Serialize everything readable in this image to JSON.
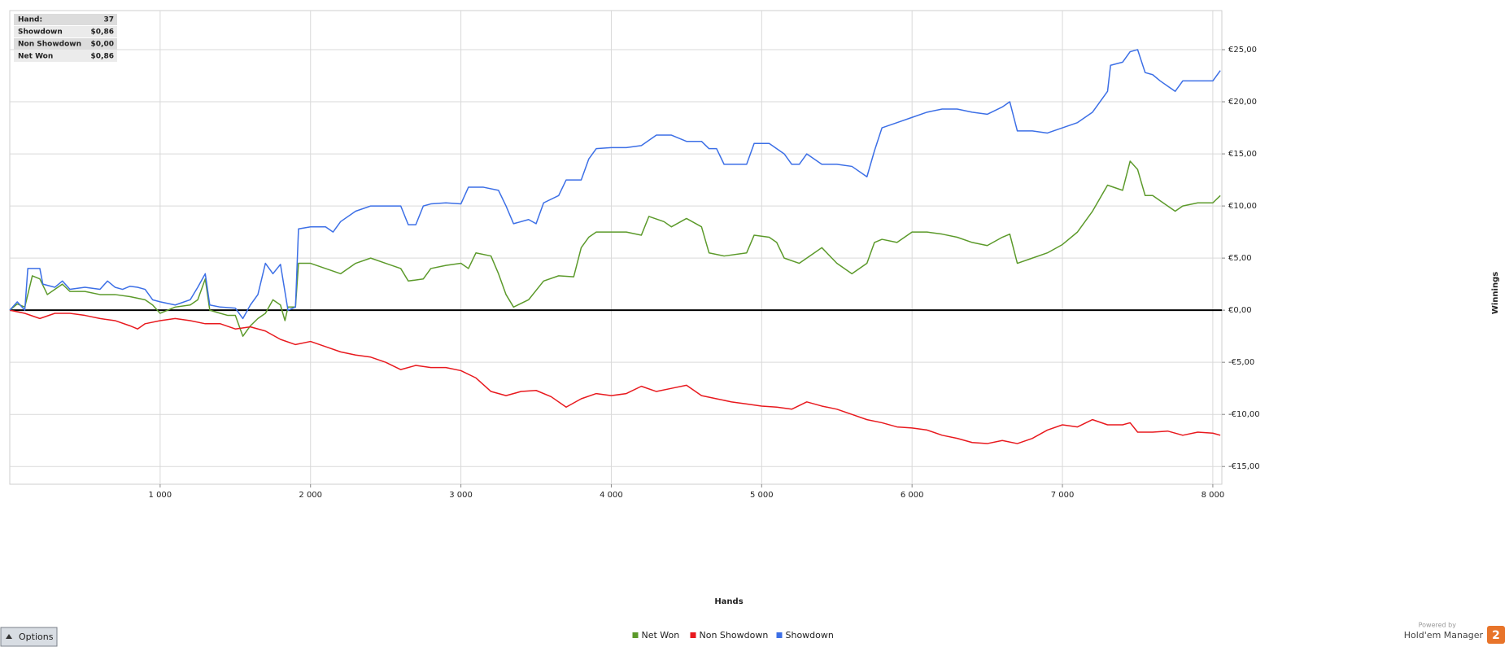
{
  "chart_data": {
    "type": "line",
    "x_label": "Hands",
    "y_label": "Winnings",
    "info": [
      {
        "label": "Hand:",
        "value": "37"
      },
      {
        "label": "Showdown",
        "value": "$0,86"
      },
      {
        "label": "Non Showdown",
        "value": "$0,00"
      },
      {
        "label": "Net Won",
        "value": "$0,86"
      }
    ],
    "xlim": [
      0,
      8060
    ],
    "xticks": [
      {
        "value": 1000,
        "label": "1 000"
      },
      {
        "value": 2000,
        "label": "2 000"
      },
      {
        "value": 3000,
        "label": "3 000"
      },
      {
        "value": 4000,
        "label": "4 000"
      },
      {
        "value": 5000,
        "label": "5 000"
      },
      {
        "value": 6000,
        "label": "6 000"
      },
      {
        "value": 7000,
        "label": "7 000"
      },
      {
        "value": 8000,
        "label": "8 000"
      }
    ],
    "ylim": [
      -16.7,
      28.75
    ],
    "yticks": [
      {
        "value": -15,
        "label": "-€15,00"
      },
      {
        "value": -10,
        "label": "-€10,00"
      },
      {
        "value": -5,
        "label": "-€5,00"
      },
      {
        "value": 0,
        "label": "€0,00"
      },
      {
        "value": 5,
        "label": "€5,00"
      },
      {
        "value": 10,
        "label": "€10,00"
      },
      {
        "value": 15,
        "label": "€15,00"
      },
      {
        "value": 20,
        "label": "€20,00"
      },
      {
        "value": 25,
        "label": "€25,00"
      }
    ],
    "grid": true,
    "reference_line": 0,
    "series": [
      {
        "name": "Net Won",
        "color": "#5c9a2b",
        "x": [
          0,
          50,
          100,
          150,
          200,
          250,
          300,
          350,
          400,
          500,
          600,
          700,
          800,
          900,
          950,
          1000,
          1100,
          1200,
          1250,
          1300,
          1330,
          1400,
          1450,
          1500,
          1550,
          1600,
          1650,
          1700,
          1750,
          1800,
          1830,
          1850,
          1900,
          1920,
          2000,
          2100,
          2200,
          2300,
          2400,
          2500,
          2600,
          2650,
          2750,
          2800,
          2900,
          3000,
          3050,
          3100,
          3200,
          3250,
          3300,
          3350,
          3450,
          3550,
          3650,
          3750,
          3800,
          3850,
          3900,
          4000,
          4100,
          4200,
          4250,
          4350,
          4400,
          4500,
          4600,
          4650,
          4750,
          4900,
          4950,
          5050,
          5100,
          5150,
          5250,
          5350,
          5400,
          5500,
          5600,
          5700,
          5750,
          5800,
          5900,
          6000,
          6100,
          6200,
          6300,
          6400,
          6500,
          6600,
          6650,
          6700,
          6800,
          6900,
          7000,
          7100,
          7200,
          7300,
          7400,
          7450,
          7500,
          7550,
          7600,
          7700,
          7750,
          7800,
          7900,
          8000,
          8050
        ],
        "values": [
          0,
          0.6,
          0.3,
          3.3,
          3.0,
          1.5,
          2.0,
          2.5,
          1.8,
          1.8,
          1.5,
          1.5,
          1.3,
          1.0,
          0.5,
          -0.3,
          0.3,
          0.5,
          1.0,
          3.0,
          0,
          -0.3,
          -0.5,
          -0.5,
          -2.5,
          -1.5,
          -0.8,
          -0.3,
          1.0,
          0.5,
          -1.0,
          0.3,
          0.3,
          4.5,
          4.5,
          4.0,
          3.5,
          4.5,
          5.0,
          4.5,
          4.0,
          2.8,
          3.0,
          4.0,
          4.3,
          4.5,
          4.0,
          5.5,
          5.2,
          3.5,
          1.5,
          0.3,
          1.0,
          2.8,
          3.3,
          3.2,
          6.0,
          7.0,
          7.5,
          7.5,
          7.5,
          7.2,
          9.0,
          8.5,
          8.0,
          8.8,
          8.0,
          5.5,
          5.2,
          5.5,
          7.2,
          7.0,
          6.5,
          5.0,
          4.5,
          5.5,
          6.0,
          4.5,
          3.5,
          4.5,
          6.5,
          6.8,
          6.5,
          7.5,
          7.5,
          7.3,
          7.0,
          6.5,
          6.2,
          7.0,
          7.3,
          4.5,
          5.0,
          5.5,
          6.3,
          7.5,
          9.5,
          12.0,
          11.5,
          14.3,
          13.5,
          11.0,
          11.0,
          10.0,
          9.5,
          10.0,
          10.3,
          10.3,
          11.0
        ]
      },
      {
        "name": "Non Showdown",
        "color": "#e8191e",
        "x": [
          0,
          100,
          200,
          300,
          400,
          500,
          600,
          700,
          800,
          850,
          900,
          1000,
          1100,
          1200,
          1300,
          1400,
          1500,
          1600,
          1700,
          1800,
          1900,
          2000,
          2100,
          2200,
          2300,
          2400,
          2500,
          2600,
          2700,
          2800,
          2900,
          3000,
          3100,
          3200,
          3300,
          3400,
          3500,
          3600,
          3700,
          3800,
          3900,
          4000,
          4100,
          4200,
          4300,
          4400,
          4500,
          4600,
          4700,
          4800,
          4900,
          5000,
          5100,
          5200,
          5300,
          5400,
          5500,
          5600,
          5700,
          5800,
          5900,
          6000,
          6100,
          6200,
          6300,
          6400,
          6500,
          6600,
          6700,
          6800,
          6900,
          7000,
          7100,
          7200,
          7300,
          7400,
          7450,
          7500,
          7600,
          7700,
          7800,
          7900,
          8000,
          8050
        ],
        "values": [
          0,
          -0.3,
          -0.8,
          -0.3,
          -0.3,
          -0.5,
          -0.8,
          -1.0,
          -1.5,
          -1.8,
          -1.3,
          -1.0,
          -0.8,
          -1.0,
          -1.3,
          -1.3,
          -1.8,
          -1.6,
          -2.0,
          -2.8,
          -3.3,
          -3.0,
          -3.5,
          -4.0,
          -4.3,
          -4.5,
          -5.0,
          -5.7,
          -5.3,
          -5.5,
          -5.5,
          -5.8,
          -6.5,
          -7.8,
          -8.2,
          -7.8,
          -7.7,
          -8.3,
          -9.3,
          -8.5,
          -8.0,
          -8.2,
          -8.0,
          -7.3,
          -7.8,
          -7.5,
          -7.2,
          -8.2,
          -8.5,
          -8.8,
          -9.0,
          -9.2,
          -9.3,
          -9.5,
          -8.8,
          -9.2,
          -9.5,
          -10.0,
          -10.5,
          -10.8,
          -11.2,
          -11.3,
          -11.5,
          -12.0,
          -12.3,
          -12.7,
          -12.8,
          -12.5,
          -12.8,
          -12.3,
          -11.5,
          -11.0,
          -11.2,
          -10.5,
          -11.0,
          -11.0,
          -10.8,
          -11.7,
          -11.7,
          -11.6,
          -12.0,
          -11.7,
          -11.8,
          -12.0
        ]
      },
      {
        "name": "Showdown",
        "color": "#3c6fe6",
        "x": [
          0,
          50,
          100,
          120,
          200,
          220,
          300,
          350,
          400,
          500,
          600,
          650,
          700,
          750,
          800,
          850,
          900,
          950,
          1000,
          1100,
          1200,
          1250,
          1300,
          1330,
          1400,
          1500,
          1550,
          1600,
          1650,
          1700,
          1750,
          1800,
          1850,
          1900,
          1920,
          2000,
          2100,
          2150,
          2200,
          2300,
          2400,
          2500,
          2600,
          2650,
          2700,
          2750,
          2800,
          2900,
          3000,
          3050,
          3150,
          3250,
          3300,
          3350,
          3450,
          3500,
          3550,
          3650,
          3700,
          3800,
          3850,
          3900,
          4000,
          4100,
          4200,
          4300,
          4400,
          4500,
          4600,
          4650,
          4700,
          4750,
          4800,
          4900,
          4950,
          5050,
          5150,
          5200,
          5250,
          5300,
          5400,
          5500,
          5600,
          5700,
          5750,
          5800,
          5900,
          6000,
          6100,
          6200,
          6300,
          6400,
          6500,
          6600,
          6650,
          6700,
          6800,
          6900,
          7000,
          7100,
          7200,
          7300,
          7320,
          7400,
          7450,
          7500,
          7550,
          7600,
          7650,
          7700,
          7750,
          7800,
          7900,
          8000,
          8050
        ],
        "values": [
          0,
          0.8,
          0,
          4.0,
          4.0,
          2.5,
          2.2,
          2.8,
          2.0,
          2.2,
          2.0,
          2.8,
          2.2,
          2.0,
          2.3,
          2.2,
          2.0,
          1.0,
          0.8,
          0.5,
          1.0,
          2.2,
          3.5,
          0.5,
          0.3,
          0.2,
          -0.8,
          0.5,
          1.5,
          4.5,
          3.5,
          4.4,
          0,
          0.3,
          7.8,
          8.0,
          8.0,
          7.5,
          8.5,
          9.5,
          10.0,
          10.0,
          10.0,
          8.2,
          8.2,
          10.0,
          10.2,
          10.3,
          10.2,
          11.8,
          11.8,
          11.5,
          10.0,
          8.3,
          8.7,
          8.3,
          10.3,
          11.0,
          12.5,
          12.5,
          14.5,
          15.5,
          15.6,
          15.6,
          15.8,
          16.8,
          16.8,
          16.2,
          16.2,
          15.5,
          15.5,
          14.0,
          14.0,
          14.0,
          16.0,
          16.0,
          15.0,
          14.0,
          14.0,
          15.0,
          14.0,
          14.0,
          13.8,
          12.8,
          15.3,
          17.5,
          18.0,
          18.5,
          19.0,
          19.3,
          19.3,
          19.0,
          18.8,
          19.5,
          20.0,
          17.2,
          17.2,
          17.0,
          17.5,
          18.0,
          19.0,
          21.0,
          23.5,
          23.8,
          24.8,
          25.0,
          22.8,
          22.6,
          22.0,
          21.5,
          21.0,
          22.0,
          22.0,
          22.0,
          23.0
        ]
      }
    ],
    "button": "Options",
    "branding": {
      "powered": "Powered by",
      "product": "Hold'em Manager",
      "version": "2"
    }
  }
}
